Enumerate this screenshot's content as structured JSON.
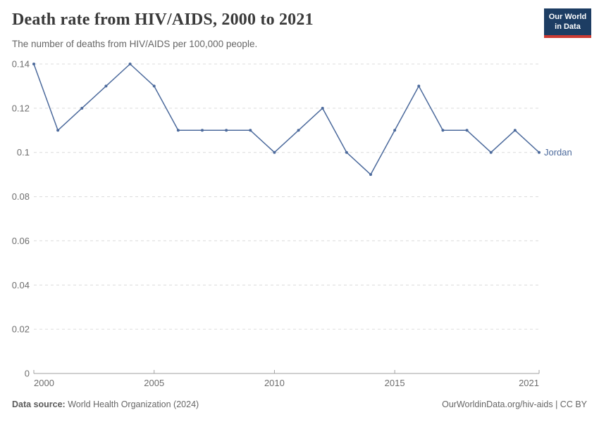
{
  "header": {
    "title": "Death rate from HIV/AIDS, 2000 to 2021",
    "subtitle": "The number of deaths from HIV/AIDS per 100,000 people.",
    "logo": {
      "line1": "Our World",
      "line2": "in Data"
    }
  },
  "chart_data": {
    "type": "line",
    "title": "Death rate from HIV/AIDS, 2000 to 2021",
    "subtitle": "The number of deaths from HIV/AIDS per 100,000 people.",
    "xlabel": "",
    "ylabel": "",
    "xlim": [
      2000,
      2021
    ],
    "ylim": [
      0,
      0.14
    ],
    "grid": "horizontal-dashed",
    "legend_position": "end-of-line-label",
    "xticks": [
      2000,
      2005,
      2010,
      2015,
      2021
    ],
    "xtick_labels": [
      "2000",
      "2005",
      "2010",
      "2015",
      "2021"
    ],
    "yticks": [
      0,
      0.02,
      0.04,
      0.06,
      0.08,
      0.1,
      0.12,
      0.14
    ],
    "ytick_labels": [
      "0",
      "0.02",
      "0.04",
      "0.06",
      "0.08",
      "0.1",
      "0.12",
      "0.14"
    ],
    "x": [
      2000,
      2001,
      2002,
      2003,
      2004,
      2005,
      2006,
      2007,
      2008,
      2009,
      2010,
      2011,
      2012,
      2013,
      2014,
      2015,
      2016,
      2017,
      2018,
      2019,
      2020,
      2021
    ],
    "series": [
      {
        "name": "Jordan",
        "color": "#4C6A9C",
        "values": [
          0.14,
          0.11,
          0.12,
          0.13,
          0.14,
          0.13,
          0.11,
          0.11,
          0.11,
          0.11,
          0.1,
          0.11,
          0.12,
          0.1,
          0.09,
          0.11,
          0.13,
          0.11,
          0.11,
          0.1,
          0.11,
          0.1
        ]
      }
    ]
  },
  "colors": {
    "line": "#4C6A9C",
    "grid": "#dcdcdc",
    "axis": "#a1a1a1",
    "tick_text": "#6e6e6e",
    "logo_bg": "#1d3d63",
    "logo_red": "#cc3b33"
  },
  "footer": {
    "datasource_label": "Data source:",
    "datasource_value": " World Health Organization (2024)",
    "credit": "OurWorldinData.org/hiv-aids | CC BY"
  }
}
